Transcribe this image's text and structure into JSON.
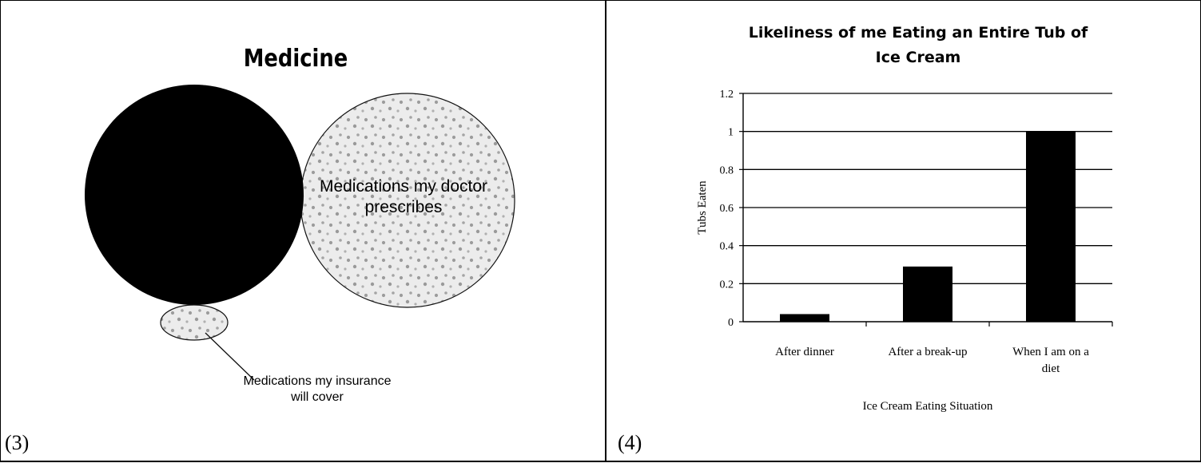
{
  "left_panel": {
    "label": "(3)",
    "venn": {
      "title": "Medicine",
      "dotted_circle_label": "Medications my doctor prescribes",
      "callout_label": "Medications my insurance will cover",
      "colors": {
        "large_circle": "#000000",
        "dotted_fill": "#ececec",
        "outline": "#111111"
      }
    }
  },
  "right_panel": {
    "label": "(4)",
    "chart_data": {
      "type": "bar",
      "title": "Likeliness of me Eating an Entire Tub of Ice Cream",
      "title_lines": [
        "Likeliness of me Eating an Entire Tub of",
        "Ice Cream"
      ],
      "xlabel": "Ice Cream Eating Situation",
      "ylabel": "Tubs Eaten",
      "categories": [
        "After dinner",
        "After a break-up",
        "When I am on a diet"
      ],
      "category_lines": [
        [
          "After dinner"
        ],
        [
          "After a break-up"
        ],
        [
          "When I am on a",
          "diet"
        ]
      ],
      "values": [
        0.04,
        0.29,
        1.0
      ],
      "ylim": [
        0,
        1.2
      ],
      "yticks": [
        0,
        0.2,
        0.4,
        0.6,
        0.8,
        1,
        1.2
      ],
      "ytick_labels": [
        "0",
        "0.2",
        "0.4",
        "0.6",
        "0.8",
        "1",
        "1.2"
      ],
      "grid": true,
      "legend": "none",
      "bar_color": "#000000"
    }
  }
}
